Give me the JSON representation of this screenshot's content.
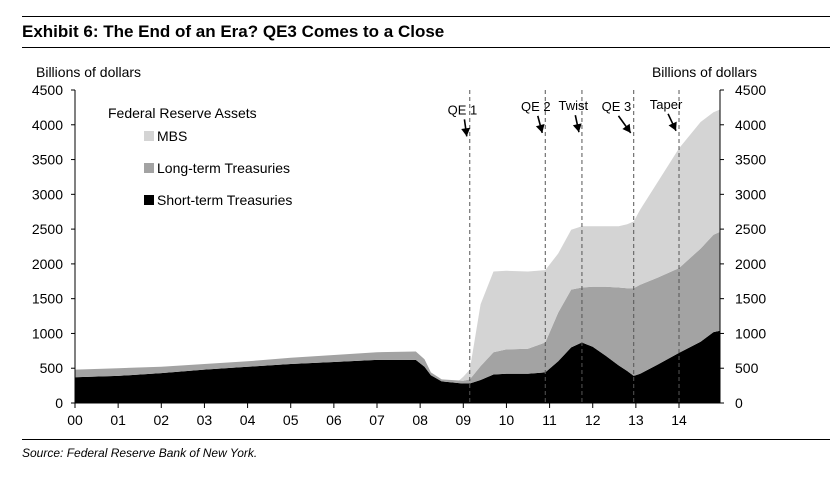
{
  "exhibit_title": "Exhibit 6: The End of an Era? QE3 Comes to a Close",
  "source": "Source: Federal Reserve Bank of New York.",
  "colors": {
    "mbs": "#d4d4d4",
    "long_term": "#a3a3a3",
    "short_term": "#000000",
    "event_line": "#555555"
  },
  "chart_data": {
    "type": "area",
    "stacked": true,
    "title": "",
    "ylabel_left": "Billions of dollars",
    "ylabel_right": "Billions of dollars",
    "ylim": [
      0,
      4500
    ],
    "yticks": [
      0,
      500,
      1000,
      1500,
      2000,
      2500,
      3000,
      3500,
      4000,
      4500
    ],
    "xlim": [
      0,
      14.95
    ],
    "xtick_labels": [
      "00",
      "01",
      "02",
      "03",
      "04",
      "05",
      "06",
      "07",
      "08",
      "09",
      "10",
      "11",
      "12",
      "13",
      "14"
    ],
    "legend_title": "Federal Reserve Assets",
    "legend_position": "top-left",
    "series": [
      {
        "name": "Short-term Treasuries",
        "color": "#000000",
        "points": [
          [
            0,
            370
          ],
          [
            1,
            390
          ],
          [
            2,
            430
          ],
          [
            3,
            480
          ],
          [
            4,
            520
          ],
          [
            5,
            560
          ],
          [
            6,
            590
          ],
          [
            7,
            620
          ],
          [
            7.9,
            620
          ],
          [
            8.1,
            520
          ],
          [
            8.25,
            400
          ],
          [
            8.5,
            310
          ],
          [
            9.0,
            280
          ],
          [
            9.15,
            280
          ],
          [
            9.4,
            330
          ],
          [
            9.7,
            410
          ],
          [
            10.0,
            420
          ],
          [
            10.5,
            420
          ],
          [
            10.9,
            440
          ],
          [
            11.2,
            600
          ],
          [
            11.5,
            800
          ],
          [
            11.75,
            870
          ],
          [
            12.0,
            810
          ],
          [
            12.3,
            680
          ],
          [
            12.6,
            540
          ],
          [
            12.8,
            460
          ],
          [
            12.95,
            390
          ],
          [
            13.1,
            420
          ],
          [
            13.5,
            550
          ],
          [
            14.0,
            720
          ],
          [
            14.5,
            880
          ],
          [
            14.8,
            1020
          ],
          [
            14.95,
            1040
          ]
        ]
      },
      {
        "name": "Long-term Treasuries",
        "color": "#a3a3a3",
        "points": [
          [
            0,
            110
          ],
          [
            1,
            110
          ],
          [
            2,
            90
          ],
          [
            3,
            80
          ],
          [
            4,
            80
          ],
          [
            5,
            90
          ],
          [
            6,
            100
          ],
          [
            7,
            110
          ],
          [
            7.9,
            120
          ],
          [
            8.1,
            110
          ],
          [
            8.25,
            40
          ],
          [
            8.5,
            30
          ],
          [
            9.0,
            40
          ],
          [
            9.15,
            60
          ],
          [
            9.4,
            200
          ],
          [
            9.7,
            320
          ],
          [
            10.0,
            350
          ],
          [
            10.5,
            360
          ],
          [
            10.9,
            430
          ],
          [
            11.2,
            700
          ],
          [
            11.5,
            830
          ],
          [
            11.75,
            790
          ],
          [
            12.0,
            860
          ],
          [
            12.3,
            990
          ],
          [
            12.6,
            1120
          ],
          [
            12.8,
            1190
          ],
          [
            12.95,
            1260
          ],
          [
            13.1,
            1280
          ],
          [
            13.5,
            1250
          ],
          [
            14.0,
            1220
          ],
          [
            14.5,
            1340
          ],
          [
            14.8,
            1400
          ],
          [
            14.95,
            1420
          ]
        ]
      },
      {
        "name": "MBS",
        "color": "#d4d4d4",
        "points": [
          [
            0,
            0
          ],
          [
            7.9,
            0
          ],
          [
            8.25,
            0
          ],
          [
            8.9,
            0
          ],
          [
            9.15,
            140
          ],
          [
            9.4,
            890
          ],
          [
            9.7,
            1160
          ],
          [
            10.0,
            1130
          ],
          [
            10.5,
            1110
          ],
          [
            10.9,
            1040
          ],
          [
            11.2,
            850
          ],
          [
            11.5,
            860
          ],
          [
            11.75,
            880
          ],
          [
            12.0,
            870
          ],
          [
            12.3,
            870
          ],
          [
            12.6,
            880
          ],
          [
            12.8,
            920
          ],
          [
            12.95,
            960
          ],
          [
            13.1,
            1080
          ],
          [
            13.5,
            1370
          ],
          [
            14.0,
            1720
          ],
          [
            14.5,
            1820
          ],
          [
            14.8,
            1760
          ],
          [
            14.95,
            1760
          ]
        ]
      }
    ],
    "events": [
      {
        "label": "QE 1",
        "x": 9.15,
        "label_x": 8.98,
        "label_y": 4150
      },
      {
        "label": "QE 2",
        "x": 10.9,
        "label_x": 10.68,
        "label_y": 4200
      },
      {
        "label": "Twist",
        "x": 11.75,
        "label_x": 11.55,
        "label_y": 4210
      },
      {
        "label": "QE 3",
        "x": 12.95,
        "label_x": 12.55,
        "label_y": 4200
      },
      {
        "label": "Taper",
        "x": 14.0,
        "label_x": 13.7,
        "label_y": 4230
      }
    ]
  }
}
